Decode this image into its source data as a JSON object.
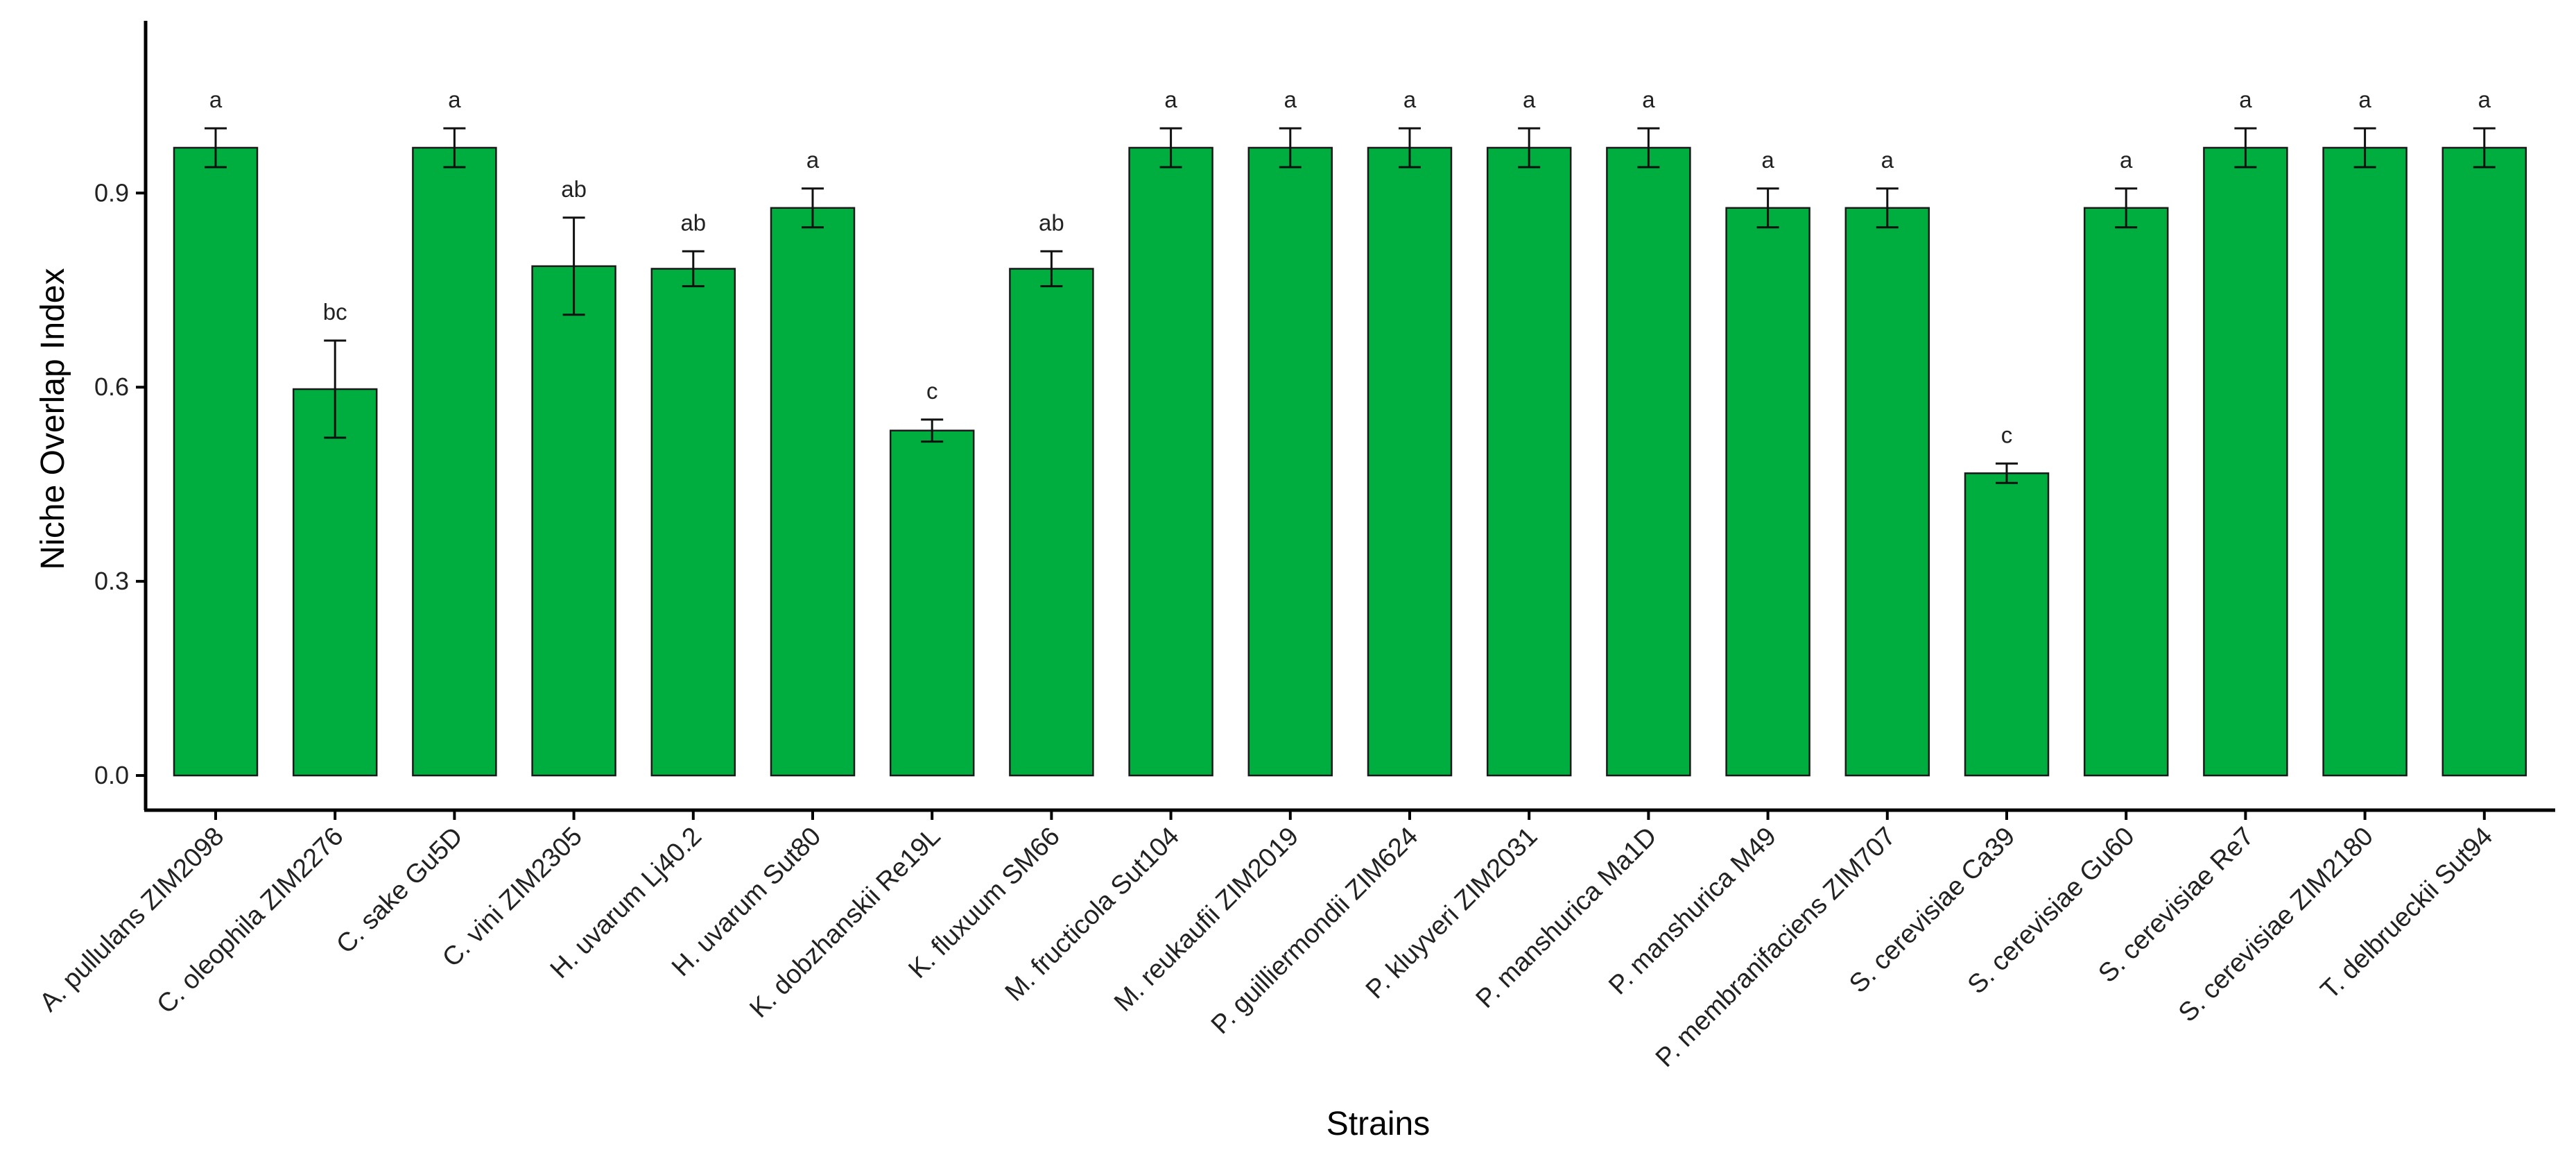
{
  "chart_data": {
    "type": "bar",
    "title": "",
    "xlabel": "Strains",
    "ylabel": "Niche Overlap Index",
    "ylim": [
      0,
      1.0
    ],
    "yticks": [
      "0.0",
      "0.3",
      "0.6",
      "0.9"
    ],
    "grid": false,
    "legend": "none",
    "categories": [
      "A. pullulans ZIM2098",
      "C. oleophila ZIM2276",
      "C. sake  Gu5D",
      "C. vini ZIM2305",
      "H. uvarum Lj40.2",
      "H. uvarum Sut80",
      "K. dobzhanskii  Re19L",
      "K. fluxuum  SM66",
      "M. fructicola Sut104",
      "M. reukaufii  ZIM2019",
      "P. guilliermondii ZIM624",
      "P. kluyveri  ZIM2031",
      "P. manshurica  Ma1D",
      "P. manshurica M49",
      "P. membranifaciens ZIM707",
      "S. cerevisiae Ca39",
      "S. cerevisiae Gu60",
      "S. cerevisiae Re7",
      "S. cerevisiae ZIM2180",
      "T. delbrueckii  Sut94"
    ],
    "values": [
      0.97,
      0.597,
      0.97,
      0.787,
      0.783,
      0.877,
      0.533,
      0.783,
      0.97,
      0.97,
      0.97,
      0.97,
      0.97,
      0.877,
      0.877,
      0.467,
      0.877,
      0.97,
      0.97,
      0.97
    ],
    "errors": [
      0.03,
      0.075,
      0.03,
      0.075,
      0.027,
      0.03,
      0.017,
      0.027,
      0.03,
      0.03,
      0.03,
      0.03,
      0.03,
      0.03,
      0.03,
      0.015,
      0.03,
      0.03,
      0.03,
      0.03
    ],
    "significance": [
      "a",
      "bc",
      "a",
      "ab",
      "ab",
      "a",
      "c",
      "ab",
      "a",
      "a",
      "a",
      "a",
      "a",
      "a",
      "a",
      "c",
      "a",
      "a",
      "a",
      "a"
    ],
    "bar_color": "#00AE3F"
  }
}
